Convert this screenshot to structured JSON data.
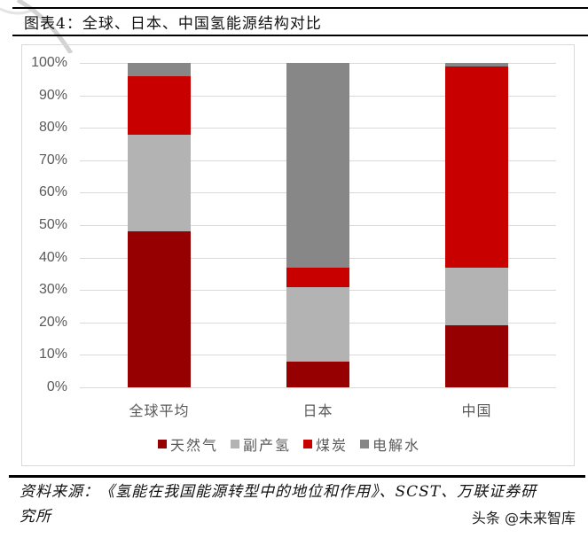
{
  "header": {
    "title": "图表4：全球、日本、中国氢能源结构对比"
  },
  "chart_data": {
    "type": "bar",
    "stacked": true,
    "title": "图表4：全球、日本、中国氢能源结构对比",
    "xlabel": "",
    "ylabel": "",
    "ylim": [
      0,
      100
    ],
    "y_ticks": [
      "0%",
      "10%",
      "20%",
      "30%",
      "40%",
      "50%",
      "60%",
      "70%",
      "80%",
      "90%",
      "100%"
    ],
    "grid": true,
    "legend_position": "bottom",
    "categories": [
      "全球平均",
      "日本",
      "中国"
    ],
    "series": [
      {
        "name": "天然气",
        "color": "#960000",
        "values": [
          48,
          8,
          19
        ]
      },
      {
        "name": "副产氢",
        "color": "#b3b3b3",
        "values": [
          30,
          23,
          18
        ]
      },
      {
        "name": "煤炭",
        "color": "#c80000",
        "values": [
          18,
          6,
          62
        ]
      },
      {
        "name": "电解水",
        "color": "#878787",
        "values": [
          4,
          63,
          1
        ]
      }
    ]
  },
  "footer": {
    "source_line1": "资料来源：《氢能在我国能源转型中的地位和作用》、SCST、万联证券研",
    "source_line2": "究所",
    "watermark": "头条 @未来智库"
  }
}
